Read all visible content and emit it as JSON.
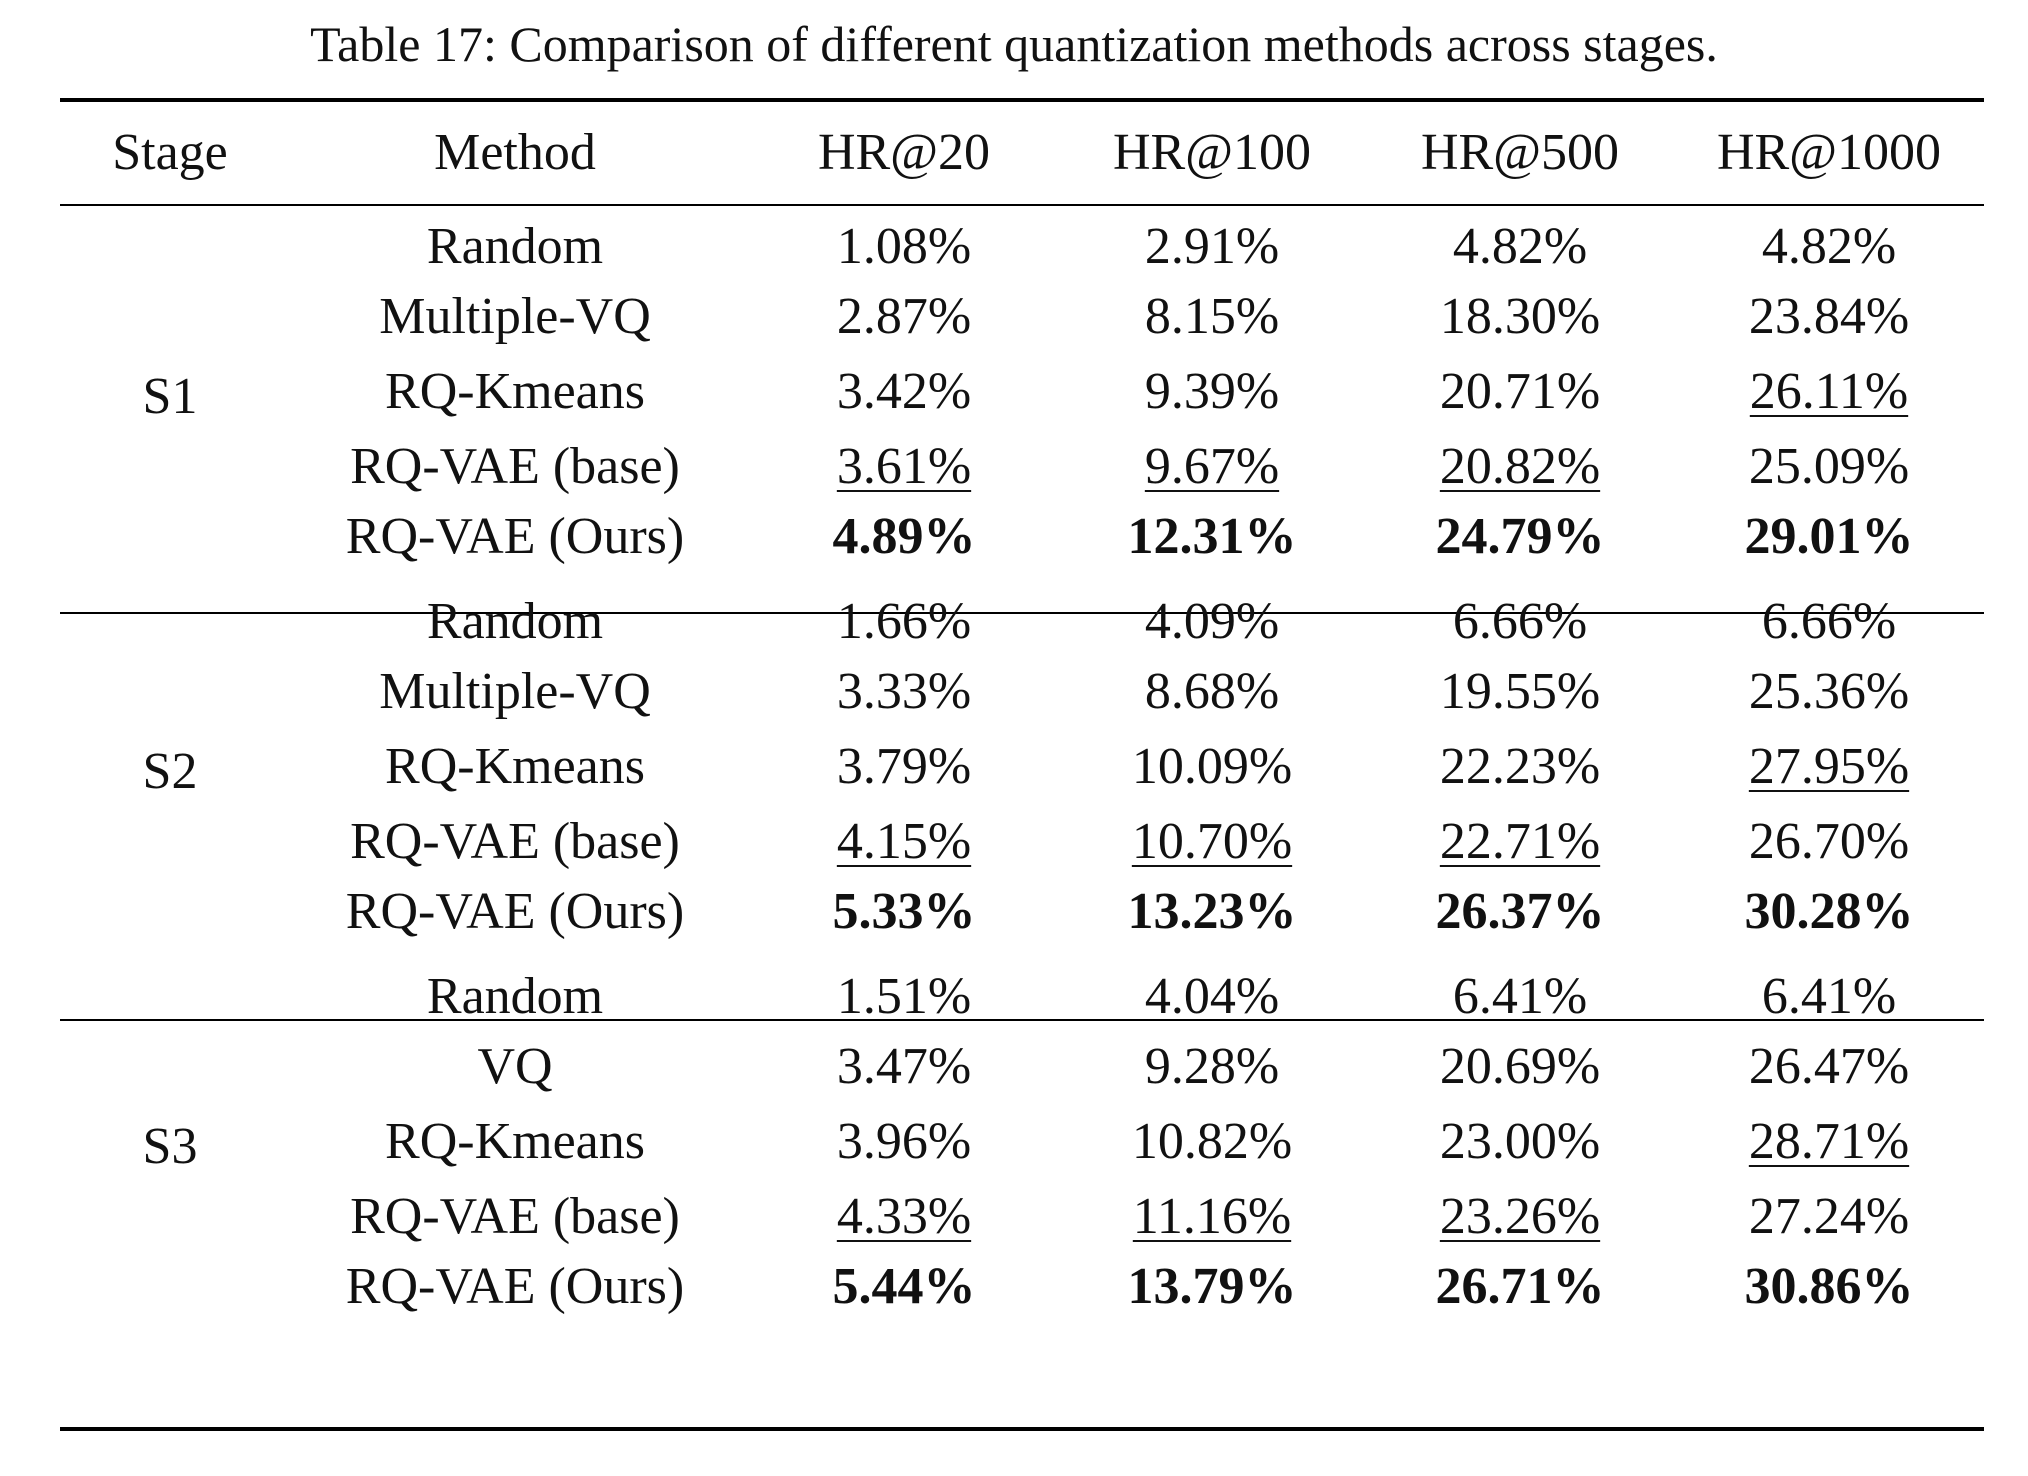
{
  "caption": "Table 17: Comparison of different quantization methods across stages.",
  "table": {
    "headers": [
      "Stage",
      "Method",
      "HR@20",
      "HR@100",
      "HR@500",
      "HR@1000"
    ],
    "groups": [
      {
        "stage": "S1",
        "rows": [
          {
            "method": "Random",
            "values": [
              "1.08%",
              "2.91%",
              "4.82%",
              "4.82%"
            ]
          },
          {
            "method": "Multiple-VQ",
            "values": [
              "2.87%",
              "8.15%",
              "18.30%",
              "23.84%"
            ]
          },
          {
            "method": "RQ-Kmeans",
            "values": [
              "3.42%",
              "9.39%",
              "20.71%",
              "26.11%"
            ]
          },
          {
            "method": "RQ-VAE (base)",
            "values": [
              "3.61%",
              "9.67%",
              "20.82%",
              "25.09%"
            ]
          },
          {
            "method": "RQ-VAE (Ours)",
            "values": [
              "4.89%",
              "12.31%",
              "24.79%",
              "29.01%"
            ]
          }
        ]
      },
      {
        "stage": "S2",
        "rows": [
          {
            "method": "Random",
            "values": [
              "1.66%",
              "4.09%",
              "6.66%",
              "6.66%"
            ]
          },
          {
            "method": "Multiple-VQ",
            "values": [
              "3.33%",
              "8.68%",
              "19.55%",
              "25.36%"
            ]
          },
          {
            "method": "RQ-Kmeans",
            "values": [
              "3.79%",
              "10.09%",
              "22.23%",
              "27.95%"
            ]
          },
          {
            "method": "RQ-VAE (base)",
            "values": [
              "4.15%",
              "10.70%",
              "22.71%",
              "26.70%"
            ]
          },
          {
            "method": "RQ-VAE (Ours)",
            "values": [
              "5.33%",
              "13.23%",
              "26.37%",
              "30.28%"
            ]
          }
        ]
      },
      {
        "stage": "S3",
        "rows": [
          {
            "method": "Random",
            "values": [
              "1.51%",
              "4.04%",
              "6.41%",
              "6.41%"
            ]
          },
          {
            "method": "VQ",
            "values": [
              "3.47%",
              "9.28%",
              "20.69%",
              "26.47%"
            ]
          },
          {
            "method": "RQ-Kmeans",
            "values": [
              "3.96%",
              "10.82%",
              "23.00%",
              "28.71%"
            ]
          },
          {
            "method": "RQ-VAE (base)",
            "values": [
              "4.33%",
              "11.16%",
              "23.26%",
              "27.24%"
            ]
          },
          {
            "method": "RQ-VAE (Ours)",
            "values": [
              "5.44%",
              "13.79%",
              "26.71%",
              "30.86%"
            ]
          }
        ]
      }
    ]
  }
}
